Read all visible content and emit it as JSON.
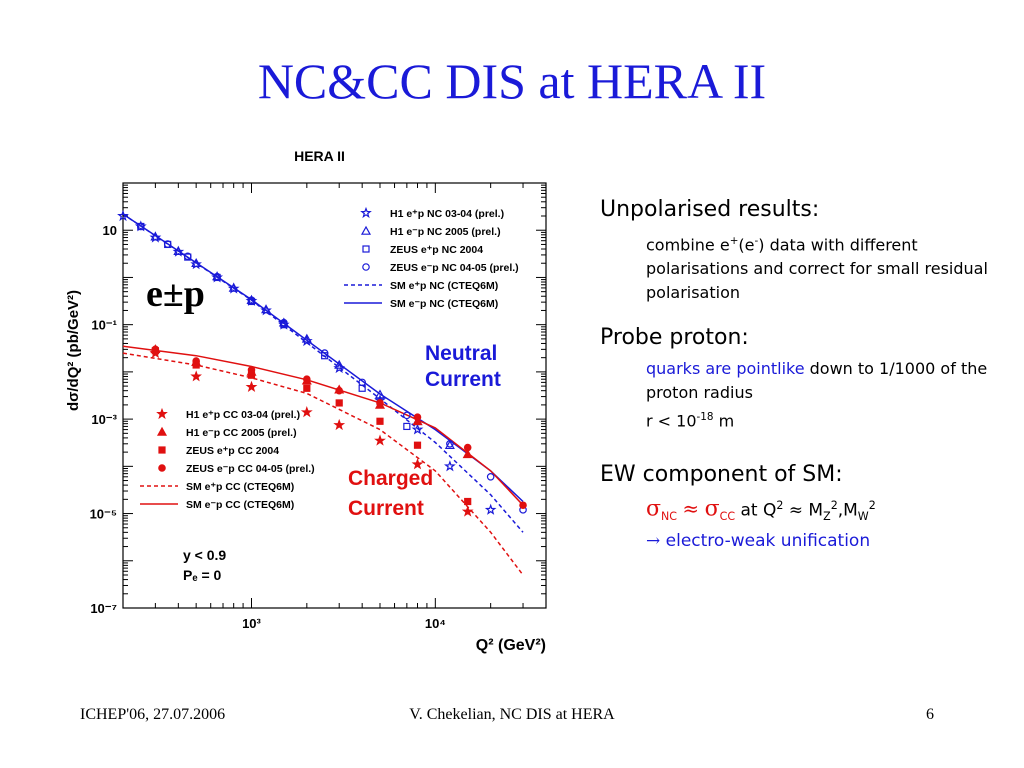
{
  "slide": {
    "title": "NC&CC DIS at HERA II",
    "footer_left": "ICHEP'06, 27.07.2006",
    "footer_center": "V. Chekelian,  NC DIS at HERA",
    "footer_right": "6"
  },
  "bullets": {
    "b1_head": "Unpolarised results:",
    "b1_sub": "combine e+(e-) data with different polarisations and correct for small residual polarisation",
    "b1_sub_a": "combine e",
    "b1_sub_b": "(e",
    "b1_sub_c": ") data with different polarisations and correct for small residual polarisation",
    "b2_head": "Probe proton:",
    "b2_sub_a": "quarks are pointlike",
    "b2_sub_b": " down to 1/1000 of the proton radius",
    "b2_sub_c": "r < 10",
    "b2_sub_exp": "-18",
    "b2_sub_d": " m",
    "b3_head": "EW component of SM:",
    "b3_line1": "σNC ≈ σCC at Q2 ≈ MZ2,MW2",
    "b3_line2": "→ electro-weak unification",
    "b3_l2_arrow": "→",
    "b3_l2_text": " electro-weak unification"
  },
  "chart_data": {
    "type": "scatter",
    "title": "HERA II",
    "xlabel": "Q² (GeV²)",
    "ylabel": "dσ/dQ² (pb/GeV²)",
    "xscale": "log",
    "yscale": "log",
    "xlim": [
      200,
      40000
    ],
    "ylim": [
      1e-07,
      100
    ],
    "x_tick_labels": [
      "10³",
      "10⁴"
    ],
    "y_tick_labels": [
      "10",
      "10⁻¹",
      "10⁻³",
      "10⁻⁵",
      "10⁻⁷"
    ],
    "annotations": {
      "beam": "e±p",
      "nc_label_1": "Neutral",
      "nc_label_2": "Current",
      "cc_label_1": "Charged",
      "cc_label_2": "Current",
      "cut_1": "y < 0.9",
      "cut_2": "Pₑ = 0"
    },
    "legend_nc": [
      "H1 e⁺p NC 03-04 (prel.)",
      "H1 e⁻p NC 2005 (prel.)",
      "ZEUS e⁺p NC 2004",
      "ZEUS e⁻p NC 04-05 (prel.)",
      "SM e⁺p NC (CTEQ6M)",
      "SM e⁻p NC (CTEQ6M)"
    ],
    "legend_cc": [
      "H1 e⁺p CC 03-04 (prel.)",
      "H1 e⁻p CC 2005 (prel.)",
      "ZEUS e⁺p CC 2004",
      "ZEUS e⁻p CC 04-05 (prel.)",
      "SM e⁺p CC (CTEQ6M)",
      "SM e⁻p CC (CTEQ6M)"
    ],
    "nc_color": "#1a1ad8",
    "cc_color": "#e01010",
    "series": [
      {
        "group": "nc",
        "marker": "star-open",
        "x": [
          200,
          250,
          300,
          400,
          500,
          650,
          800,
          1000,
          1200,
          1500,
          2000,
          3000,
          5000,
          8000,
          12000,
          20000
        ],
        "y": [
          20,
          12,
          7,
          3.5,
          1.9,
          1.0,
          0.58,
          0.32,
          0.2,
          0.1,
          0.045,
          0.012,
          0.0025,
          0.0006,
          0.0001,
          1.2e-05
        ]
      },
      {
        "group": "nc",
        "marker": "triangle-open",
        "x": [
          300,
          400,
          500,
          650,
          800,
          1000,
          1200,
          1500,
          2000,
          3000,
          5000,
          8000,
          12000
        ],
        "y": [
          7.3,
          3.6,
          2.0,
          1.05,
          0.6,
          0.33,
          0.21,
          0.11,
          0.05,
          0.014,
          0.0033,
          0.0009,
          0.00028
        ]
      },
      {
        "group": "nc",
        "marker": "square-open",
        "x": [
          250,
          350,
          450,
          650,
          1000,
          1500,
          2500,
          4000,
          7000
        ],
        "y": [
          12,
          5.0,
          2.7,
          1.0,
          0.31,
          0.1,
          0.022,
          0.0045,
          0.0007
        ]
      },
      {
        "group": "nc",
        "marker": "circle-open",
        "x": [
          250,
          350,
          450,
          650,
          1000,
          1500,
          2500,
          4000,
          7000,
          12000,
          20000,
          30000
        ],
        "y": [
          12,
          5.1,
          2.8,
          1.04,
          0.33,
          0.11,
          0.025,
          0.006,
          0.0012,
          0.0003,
          6e-05,
          1.2e-05
        ]
      },
      {
        "group": "cc",
        "marker": "star-filled",
        "x": [
          300,
          500,
          1000,
          2000,
          3000,
          5000,
          8000,
          15000
        ],
        "y": [
          0.025,
          0.008,
          0.0048,
          0.0014,
          0.00075,
          0.00035,
          0.00011,
          1.1e-05
        ]
      },
      {
        "group": "cc",
        "marker": "triangle-filled",
        "x": [
          300,
          500,
          1000,
          2000,
          3000,
          5000,
          8000,
          15000
        ],
        "y": [
          0.03,
          0.016,
          0.01,
          0.0065,
          0.0042,
          0.002,
          0.0009,
          0.00018
        ]
      },
      {
        "group": "cc",
        "marker": "square-filled",
        "x": [
          300,
          500,
          1000,
          2000,
          3000,
          5000,
          8000,
          15000
        ],
        "y": [
          0.028,
          0.014,
          0.0085,
          0.0045,
          0.0022,
          0.0009,
          0.00028,
          1.8e-05
        ]
      },
      {
        "group": "cc",
        "marker": "circle-filled",
        "x": [
          300,
          500,
          1000,
          2000,
          3000,
          5000,
          8000,
          15000,
          30000
        ],
        "y": [
          0.03,
          0.017,
          0.011,
          0.007,
          0.004,
          0.0022,
          0.0011,
          0.00025,
          1.5e-05
        ]
      }
    ],
    "curves": [
      {
        "group": "nc",
        "style": "dashed",
        "x": [
          200,
          1000,
          5000,
          10000,
          20000,
          30000
        ],
        "y": [
          22,
          0.33,
          0.0027,
          0.00032,
          2.5e-05,
          4e-06
        ]
      },
      {
        "group": "nc",
        "style": "solid",
        "x": [
          200,
          1000,
          5000,
          10000,
          20000,
          30000
        ],
        "y": [
          22,
          0.34,
          0.0034,
          0.0006,
          8e-05,
          1.8e-05
        ]
      },
      {
        "group": "cc",
        "style": "dashed",
        "x": [
          200,
          500,
          1000,
          2000,
          5000,
          10000,
          20000,
          30000
        ],
        "y": [
          0.025,
          0.014,
          0.0075,
          0.0035,
          0.0006,
          8e-05,
          4e-06,
          5e-07
        ]
      },
      {
        "group": "cc",
        "style": "solid",
        "x": [
          200,
          500,
          1000,
          2000,
          5000,
          10000,
          20000,
          30000
        ],
        "y": [
          0.035,
          0.022,
          0.013,
          0.0068,
          0.0022,
          0.00065,
          8e-05,
          1.5e-05
        ]
      }
    ]
  }
}
